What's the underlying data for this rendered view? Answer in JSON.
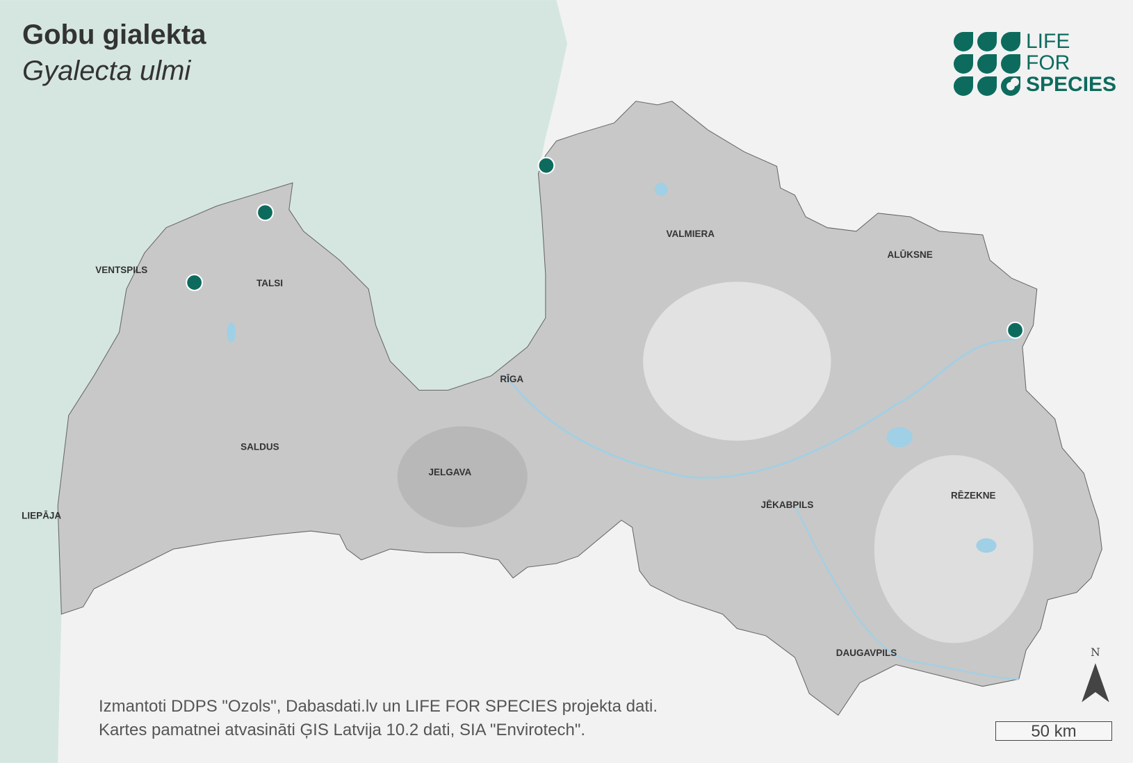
{
  "title": "Gobu gialekta",
  "subtitle": "Gyalecta ulmi",
  "logo": {
    "line1": "LIFE",
    "line2": "FOR",
    "line3": "SPECIES"
  },
  "cities": [
    {
      "name": "VENTSPILS"
    },
    {
      "name": "TALSI"
    },
    {
      "name": "VALMIERA"
    },
    {
      "name": "ALŪKSNE"
    },
    {
      "name": "RĪGA"
    },
    {
      "name": "SALDUS"
    },
    {
      "name": "JELGAVA"
    },
    {
      "name": "LIEPĀJA"
    },
    {
      "name": "JĒKABPILS"
    },
    {
      "name": "RĒZEKNE"
    },
    {
      "name": "DAUGAVPILS"
    }
  ],
  "occurrence_points": 4,
  "credits": {
    "line1": "Izmantoti DDPS \"Ozols\", Dabasdati.lv un LIFE FOR SPECIES projekta dati.",
    "line2": "Kartes pamatnei atvasināti ĢIS Latvija 10.2 dati, SIA \"Envirotech\"."
  },
  "north_label": "N",
  "scale_label": "50 km",
  "colors": {
    "sea": "#d5e6e1",
    "land": "#c8c8c8",
    "outside": "#f2f2f2",
    "point": "#0d6b5e",
    "water": "#9fd0e6"
  }
}
